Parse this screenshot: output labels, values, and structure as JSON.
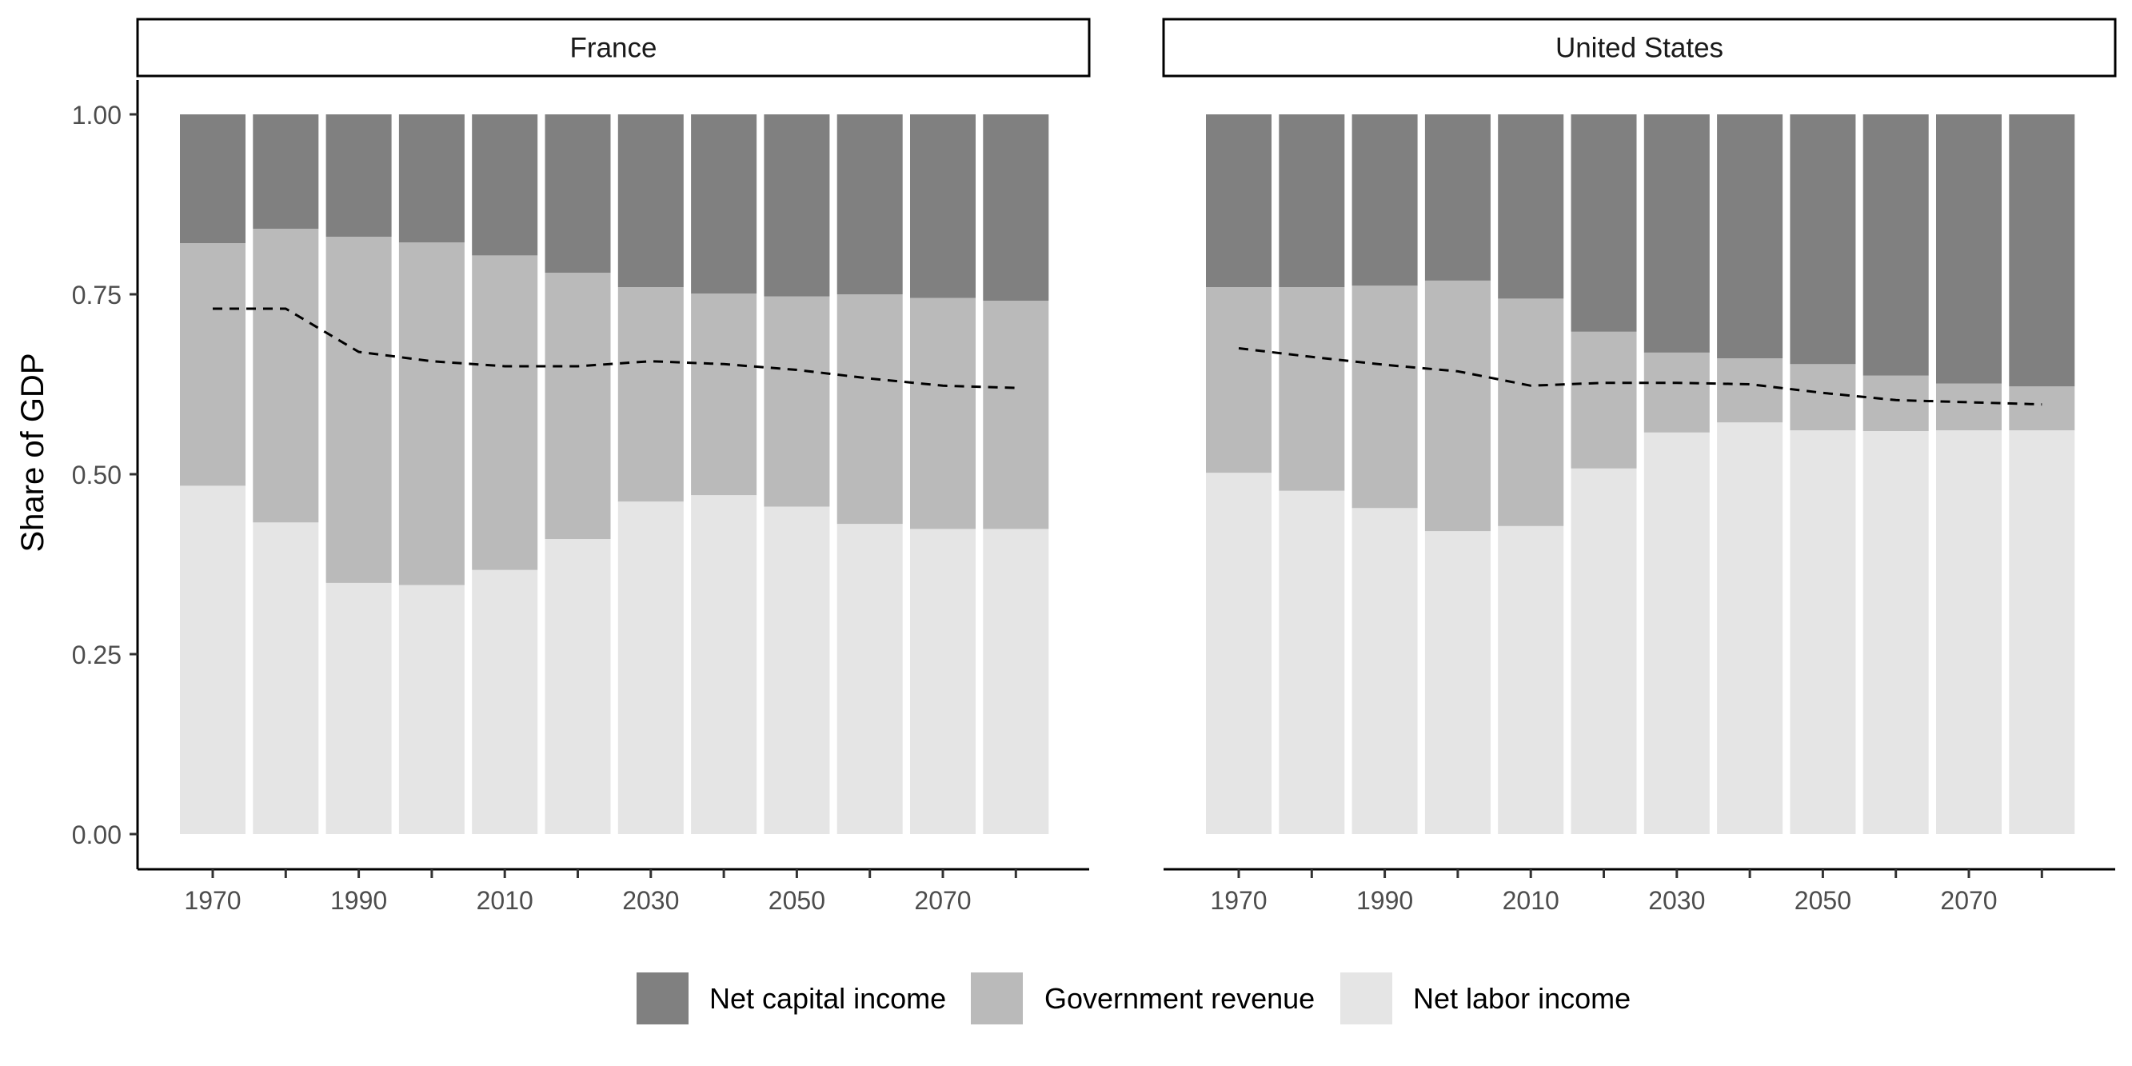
{
  "chart_data": {
    "type": "bar",
    "stacked": true,
    "ylabel": "Share of GDP",
    "xlabel": "",
    "ylim": [
      0,
      1
    ],
    "y_ticks": [
      "0.00",
      "0.25",
      "0.50",
      "0.75",
      "1.00"
    ],
    "x_ticks": [
      1970,
      1990,
      2010,
      2030,
      2050,
      2070
    ],
    "grid": false,
    "legend_position": "bottom",
    "colors": {
      "Net capital income": "#808080",
      "Government revenue": "#bababa",
      "Net labor income": "#e5e5e5",
      "line": "#000000"
    },
    "legend": [
      "Net capital income",
      "Government revenue",
      "Net labor income"
    ],
    "stack_order": [
      "Net labor income",
      "Government revenue",
      "Net capital income"
    ],
    "x": [
      1970,
      1980,
      1990,
      2000,
      2010,
      2020,
      2030,
      2040,
      2050,
      2060,
      2070,
      2080
    ],
    "panels": [
      {
        "title": "France",
        "series": [
          {
            "name": "Net labor income",
            "values": [
              0.484,
              0.433,
              0.349,
              0.346,
              0.367,
              0.41,
              0.462,
              0.471,
              0.455,
              0.431,
              0.424,
              0.424
            ]
          },
          {
            "name": "Government revenue",
            "values": [
              0.337,
              0.408,
              0.481,
              0.476,
              0.437,
              0.37,
              0.298,
              0.28,
              0.292,
              0.319,
              0.321,
              0.317
            ]
          },
          {
            "name": "Net capital income",
            "values": [
              0.179,
              0.159,
              0.17,
              0.178,
              0.196,
              0.22,
              0.24,
              0.249,
              0.253,
              0.25,
              0.255,
              0.259
            ]
          }
        ],
        "line": {
          "name": "",
          "values": [
            0.73,
            0.73,
            0.67,
            0.657,
            0.65,
            0.65,
            0.657,
            0.653,
            0.645,
            0.633,
            0.623,
            0.62
          ]
        }
      },
      {
        "title": "United States",
        "series": [
          {
            "name": "Net labor income",
            "values": [
              0.502,
              0.477,
              0.453,
              0.421,
              0.428,
              0.508,
              0.558,
              0.572,
              0.561,
              0.56,
              0.561,
              0.561
            ]
          },
          {
            "name": "Government revenue",
            "values": [
              0.258,
              0.283,
              0.309,
              0.348,
              0.316,
              0.19,
              0.111,
              0.089,
              0.092,
              0.077,
              0.065,
              0.061
            ]
          },
          {
            "name": "Net capital income",
            "values": [
              0.24,
              0.24,
              0.238,
              0.231,
              0.256,
              0.302,
              0.331,
              0.339,
              0.347,
              0.363,
              0.374,
              0.378
            ]
          }
        ],
        "line": {
          "name": "",
          "values": [
            0.675,
            0.663,
            0.652,
            0.643,
            0.623,
            0.627,
            0.627,
            0.625,
            0.613,
            0.603,
            0.6,
            0.597
          ]
        }
      }
    ]
  }
}
